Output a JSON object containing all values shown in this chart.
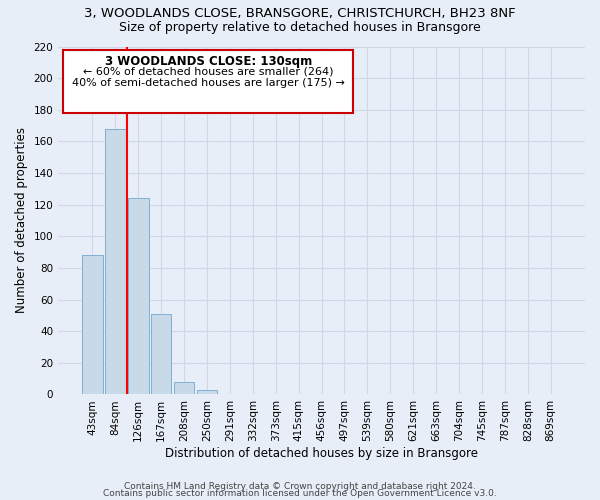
{
  "title_line1": "3, WOODLANDS CLOSE, BRANSGORE, CHRISTCHURCH, BH23 8NF",
  "title_line2": "Size of property relative to detached houses in Bransgore",
  "bar_labels": [
    "43sqm",
    "84sqm",
    "126sqm",
    "167sqm",
    "208sqm",
    "250sqm",
    "291sqm",
    "332sqm",
    "373sqm",
    "415sqm",
    "456sqm",
    "497sqm",
    "539sqm",
    "580sqm",
    "621sqm",
    "663sqm",
    "704sqm",
    "745sqm",
    "787sqm",
    "828sqm",
    "869sqm"
  ],
  "bar_values": [
    88,
    168,
    124,
    51,
    8,
    3,
    0,
    0,
    0,
    0,
    0,
    0,
    0,
    0,
    0,
    0,
    0,
    0,
    0,
    0,
    0
  ],
  "bar_color": "#c8d9e8",
  "bar_edge_color": "#7fb0d0",
  "ylabel": "Number of detached properties",
  "xlabel": "Distribution of detached houses by size in Bransgore",
  "ylim": [
    0,
    220
  ],
  "yticks": [
    0,
    20,
    40,
    60,
    80,
    100,
    120,
    140,
    160,
    180,
    200,
    220
  ],
  "annotation_box_title": "3 WOODLANDS CLOSE: 130sqm",
  "annotation_line1": "← 60% of detached houses are smaller (264)",
  "annotation_line2": "40% of semi-detached houses are larger (175) →",
  "red_line_bar_index": 2,
  "annotation_box_color": "#ffffff",
  "annotation_box_edge_color": "#cc0000",
  "footer_line1": "Contains HM Land Registry data © Crown copyright and database right 2024.",
  "footer_line2": "Contains public sector information licensed under the Open Government Licence v3.0.",
  "background_color": "#e8eef8",
  "grid_color": "#d0d8e8",
  "title_fontsize": 9.5,
  "subtitle_fontsize": 9,
  "axis_label_fontsize": 8.5,
  "tick_fontsize": 7.5,
  "footer_fontsize": 6.5
}
